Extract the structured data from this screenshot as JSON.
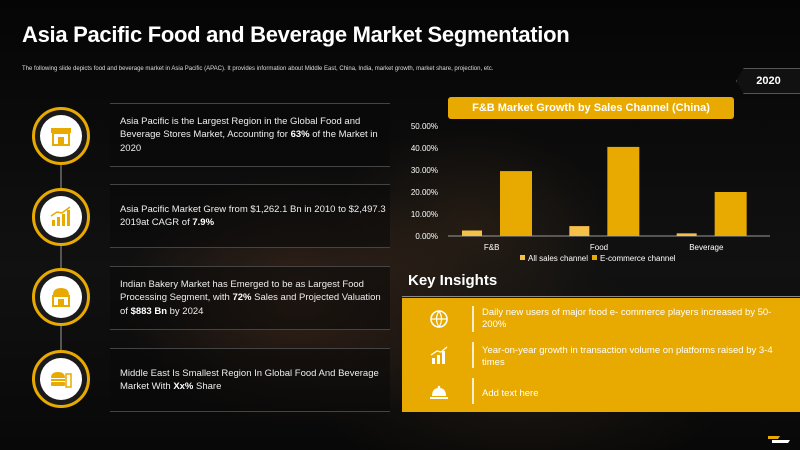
{
  "title": "Asia Pacific Food and Beverage Market Segmentation",
  "subtitle": "The following slide depicts food and beverage market in Asia Pacific (APAC). It provides information about Middle East, China, India, market growth, market share, projection, etc.",
  "year_tag": "2020",
  "rows": [
    {
      "icon": "store-icon",
      "parts": [
        "Asia Pacific is the Largest Region in the Global Food and Beverage Stores Market, Accounting for ",
        "63%",
        " of the Market in 2020"
      ]
    },
    {
      "icon": "growth-chart-icon",
      "parts": [
        "Asia Pacific Market Grew from $1,262.1 Bn in 2010 to $2,497.3 2019at CAGR of ",
        "7.9%",
        ""
      ]
    },
    {
      "icon": "bakery-icon",
      "parts": [
        "Indian Bakery Market has Emerged to be as Largest Food Processing Segment, with ",
        "72%",
        " Sales and Projected Valuation of ",
        "$883 Bn",
        " by 2024"
      ]
    },
    {
      "icon": "fast-food-icon",
      "parts": [
        "Middle East Is Smallest Region In Global Food And Beverage Market With ",
        "Xx%",
        " Share"
      ]
    }
  ],
  "chart_data": {
    "type": "bar",
    "title": "F&B Market Growth by Sales Channel (China)",
    "categories": [
      "F&B",
      "Food",
      "Beverage"
    ],
    "series": [
      {
        "name": "All sales channel",
        "values": [
          2.5,
          4.5,
          1.2
        ],
        "color": "#f5c04a"
      },
      {
        "name": "E-commerce channel",
        "values": [
          29.5,
          40.5,
          20.0
        ],
        "color": "#e8a900"
      }
    ],
    "ylim": [
      0,
      50
    ],
    "yticks": [
      "0.00%",
      "10.00%",
      "20.00%",
      "30.00%",
      "40.00%",
      "50.00%"
    ],
    "legend": "bottom"
  },
  "key_insights": {
    "title": "Key Insights",
    "items": [
      {
        "icon": "globe-cart-icon",
        "text": "Daily new users of major food e- commerce players increased by 50-200%"
      },
      {
        "icon": "bar-growth-icon",
        "text": "Year-on-year growth in transaction volume on platforms raised by 3-4 times"
      },
      {
        "icon": "food-tray-icon",
        "text": "Add text here"
      }
    ]
  },
  "colors": {
    "accent": "#e8a900",
    "background": "#0b0b0b"
  }
}
